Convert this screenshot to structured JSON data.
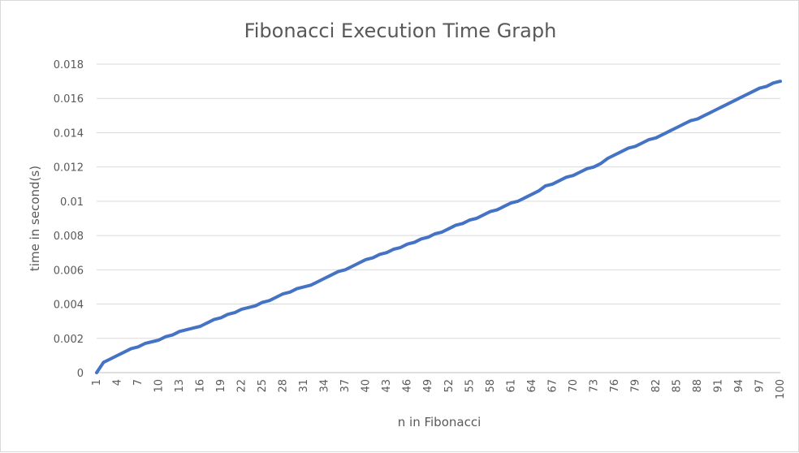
{
  "chart_data": {
    "type": "line",
    "title": "Fibonacci Execution Time Graph",
    "xlabel": "n in Fibonacci",
    "ylabel": "time in second(s)",
    "ylim": [
      0,
      0.018
    ],
    "yticks": [
      "0",
      "0.002",
      "0.004",
      "0.006",
      "0.008",
      "0.01",
      "0.012",
      "0.014",
      "0.016",
      "0.018"
    ],
    "xtick_labels": [
      "1",
      "4",
      "7",
      "10",
      "13",
      "16",
      "19",
      "22",
      "25",
      "28",
      "31",
      "34",
      "37",
      "40",
      "43",
      "46",
      "49",
      "52",
      "55",
      "58",
      "61",
      "64",
      "67",
      "70",
      "73",
      "76",
      "79",
      "82",
      "85",
      "88",
      "91",
      "94",
      "97",
      "100"
    ],
    "grid": true,
    "legend": "none",
    "color": "#4472c4",
    "series": [
      {
        "x": [
          1,
          2,
          3,
          4,
          5,
          6,
          7,
          8,
          9,
          10,
          11,
          12,
          13,
          14,
          15,
          16,
          17,
          18,
          19,
          20,
          21,
          22,
          23,
          24,
          25,
          26,
          27,
          28,
          29,
          30,
          31,
          32,
          33,
          34,
          35,
          36,
          37,
          38,
          39,
          40,
          41,
          42,
          43,
          44,
          45,
          46,
          47,
          48,
          49,
          50,
          51,
          52,
          53,
          54,
          55,
          56,
          57,
          58,
          59,
          60,
          61,
          62,
          63,
          64,
          65,
          66,
          67,
          68,
          69,
          70,
          71,
          72,
          73,
          74,
          75,
          76,
          77,
          78,
          79,
          80,
          81,
          82,
          83,
          84,
          85,
          86,
          87,
          88,
          89,
          90,
          91,
          92,
          93,
          94,
          95,
          96,
          97,
          98,
          99,
          100
        ],
        "values": [
          0,
          0.0006,
          0.0008,
          0.001,
          0.0012,
          0.0014,
          0.0015,
          0.0017,
          0.0018,
          0.0019,
          0.0021,
          0.0022,
          0.0024,
          0.0025,
          0.0026,
          0.0027,
          0.0029,
          0.0031,
          0.0032,
          0.0034,
          0.0035,
          0.0037,
          0.0038,
          0.0039,
          0.0041,
          0.0042,
          0.0044,
          0.0046,
          0.0047,
          0.0049,
          0.005,
          0.0051,
          0.0053,
          0.0055,
          0.0057,
          0.0059,
          0.006,
          0.0062,
          0.0064,
          0.0066,
          0.0067,
          0.0069,
          0.007,
          0.0072,
          0.0073,
          0.0075,
          0.0076,
          0.0078,
          0.0079,
          0.0081,
          0.0082,
          0.0084,
          0.0086,
          0.0087,
          0.0089,
          0.009,
          0.0092,
          0.0094,
          0.0095,
          0.0097,
          0.0099,
          0.01,
          0.0102,
          0.0104,
          0.0106,
          0.0109,
          0.011,
          0.0112,
          0.0114,
          0.0115,
          0.0117,
          0.0119,
          0.012,
          0.0122,
          0.0125,
          0.0127,
          0.0129,
          0.0131,
          0.0132,
          0.0134,
          0.0136,
          0.0137,
          0.0139,
          0.0141,
          0.0143,
          0.0145,
          0.0147,
          0.0148,
          0.015,
          0.0152,
          0.0154,
          0.0156,
          0.0158,
          0.016,
          0.0162,
          0.0164,
          0.0166,
          0.0167,
          0.0169,
          0.017
        ]
      }
    ]
  }
}
